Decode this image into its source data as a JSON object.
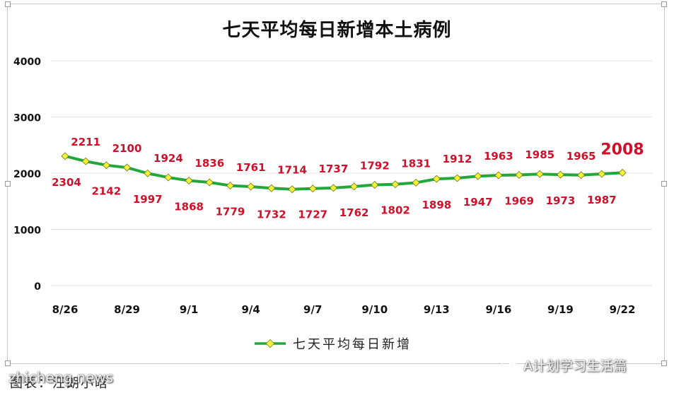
{
  "title": "七天平均每日新增本土病例",
  "legend": {
    "label": "七天平均每日新增"
  },
  "caption": "图表：汪朗小晗",
  "watermark_left": "zhicheng.news",
  "watermark_right": "A计划学习生活篇",
  "chart_data": {
    "type": "line",
    "title": "七天平均每日新增本土病例",
    "xlabel": "",
    "ylabel": "",
    "ylim": [
      0,
      4000
    ],
    "yticks": [
      "0",
      "1000",
      "2000",
      "3000",
      "4000"
    ],
    "grid": true,
    "legend_position": "bottom",
    "x": [
      "8/26",
      "8/27",
      "8/28",
      "8/29",
      "8/30",
      "8/31",
      "9/1",
      "9/2",
      "9/3",
      "9/4",
      "9/5",
      "9/6",
      "9/7",
      "9/8",
      "9/9",
      "9/10",
      "9/11",
      "9/12",
      "9/13",
      "9/14",
      "9/15",
      "9/16",
      "9/17",
      "9/18",
      "9/19",
      "9/20",
      "9/21",
      "9/22"
    ],
    "xtick_labels": [
      "8/26",
      "8/29",
      "9/1",
      "9/4",
      "9/7",
      "9/10",
      "9/13",
      "9/16",
      "9/19",
      "9/22"
    ],
    "series": [
      {
        "name": "七天平均每日新增",
        "color": "#22a83a",
        "marker_color": "#f2f23a",
        "values": [
          2304,
          2211,
          2142,
          2100,
          1997,
          1924,
          1868,
          1836,
          1779,
          1761,
          1732,
          1714,
          1727,
          1737,
          1762,
          1792,
          1802,
          1831,
          1898,
          1912,
          1947,
          1963,
          1969,
          1985,
          1973,
          1965,
          1987,
          2008
        ]
      }
    ],
    "data_labels": [
      "2304",
      "2211",
      "2142",
      "2100",
      "1997",
      "1924",
      "1868",
      "1836",
      "1779",
      "1761",
      "1732",
      "1714",
      "1727",
      "1737",
      "1762",
      "1792",
      "1802",
      "1831",
      "1898",
      "1912",
      "1947",
      "1963",
      "1969",
      "1985",
      "1973",
      "1965",
      "1987",
      "2008"
    ],
    "label_color": "#d0102a"
  }
}
